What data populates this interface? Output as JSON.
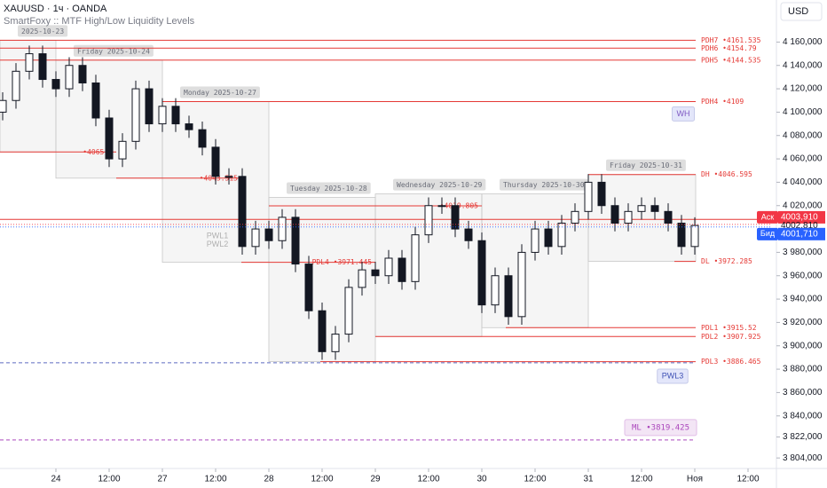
{
  "chart_data": {
    "type": "candlestick",
    "title": "XAUUSD · 1ч · OANDA",
    "subtitle": "SmartFoxy :: MTF High/Low Liquidity Levels",
    "currency": "USD",
    "xlim": [
      -12.6,
      161.4
    ],
    "ylim": [
      3795,
      4196
    ],
    "xticks": [
      {
        "value": 0,
        "label": "24"
      },
      {
        "value": 12,
        "label": "12:00"
      },
      {
        "value": 24,
        "label": "27"
      },
      {
        "value": 36,
        "label": "12:00"
      },
      {
        "value": 48,
        "label": "28"
      },
      {
        "value": 60,
        "label": "12:00"
      },
      {
        "value": 72,
        "label": "29"
      },
      {
        "value": 84,
        "label": "12:00"
      },
      {
        "value": 96,
        "label": "30"
      },
      {
        "value": 108,
        "label": "12:00"
      },
      {
        "value": 120,
        "label": "31"
      },
      {
        "value": 132,
        "label": "12:00"
      },
      {
        "value": 144,
        "label": "Ноя"
      },
      {
        "value": 156,
        "label": "12:00"
      }
    ],
    "yticks": [
      {
        "value": 4160,
        "label": "4 160,000"
      },
      {
        "value": 4140,
        "label": "4 140,000"
      },
      {
        "value": 4120,
        "label": "4 120,000"
      },
      {
        "value": 4100,
        "label": "4 100,000"
      },
      {
        "value": 4080,
        "label": "4 080,000"
      },
      {
        "value": 4060,
        "label": "4 060,000"
      },
      {
        "value": 4040,
        "label": "4 040,000"
      },
      {
        "value": 4020,
        "label": "4 020,000"
      },
      {
        "value": 3980,
        "label": "3 980,000"
      },
      {
        "value": 3960,
        "label": "3 960,000"
      },
      {
        "value": 3940,
        "label": "3 940,000"
      },
      {
        "value": 3920,
        "label": "3 920,000"
      },
      {
        "value": 3900,
        "label": "3 900,000"
      },
      {
        "value": 3880,
        "label": "3 880,000"
      },
      {
        "value": 3860,
        "label": "3 860,000"
      },
      {
        "value": 3840,
        "label": "3 840,000"
      },
      {
        "value": 3822,
        "label": "3 822,000"
      },
      {
        "value": 3804,
        "label": "3 804,000"
      }
    ],
    "candles": {
      "x": [
        -12,
        -9,
        -6,
        -3,
        0,
        3,
        6,
        9,
        12,
        15,
        18,
        21,
        24,
        27,
        30,
        33,
        36,
        39,
        42,
        45,
        48,
        51,
        54,
        57,
        60,
        63,
        66,
        69,
        72,
        75,
        78,
        81,
        84,
        87,
        90,
        93,
        96,
        99,
        102,
        105,
        108,
        111,
        114,
        117,
        120,
        123,
        126,
        129,
        132,
        135,
        138,
        141,
        144
      ],
      "open": [
        4100,
        4110,
        4135,
        4150,
        4128,
        4120,
        4140,
        4125,
        4095,
        4060,
        4075,
        4120,
        4090,
        4105,
        4090,
        4085,
        4070,
        4045,
        4045,
        3985,
        4000,
        3990,
        4010,
        3970,
        3930,
        3895,
        3910,
        3950,
        3965,
        3960,
        3975,
        3955,
        3995,
        4020,
        4020,
        4000,
        3990,
        3935,
        3960,
        3925,
        3980,
        4000,
        3985,
        4005,
        4015,
        4040,
        4020,
        4005,
        4015,
        4020,
        4015,
        4005,
        3985
      ],
      "high": [
        4117,
        4142,
        4157,
        4157,
        4135,
        4147,
        4147,
        4132,
        4102,
        4082,
        4127,
        4127,
        4112,
        4112,
        4097,
        4092,
        4077,
        4052,
        4052,
        4007,
        4007,
        4017,
        4017,
        3977,
        3937,
        3917,
        3957,
        3972,
        3972,
        3982,
        3982,
        4002,
        4027,
        4027,
        4027,
        4007,
        3997,
        3967,
        3967,
        3987,
        4007,
        4007,
        4012,
        4022,
        4047,
        4047,
        4027,
        4022,
        4027,
        4027,
        4022,
        4012,
        4010
      ],
      "low": [
        4093,
        4103,
        4128,
        4121,
        4113,
        4113,
        4118,
        4088,
        4053,
        4053,
        4068,
        4083,
        4083,
        4083,
        4078,
        4063,
        4038,
        4038,
        3978,
        3978,
        3983,
        3983,
        3963,
        3923,
        3888,
        3888,
        3903,
        3943,
        3953,
        3953,
        3948,
        3948,
        3988,
        4013,
        3993,
        3983,
        3928,
        3928,
        3918,
        3918,
        3973,
        3978,
        3978,
        3998,
        4008,
        4013,
        3998,
        3998,
        4008,
        4008,
        3998,
        3978,
        3978
      ],
      "close": [
        4110,
        4135,
        4150,
        4128,
        4120,
        4140,
        4125,
        4095,
        4060,
        4075,
        4120,
        4090,
        4105,
        4090,
        4085,
        4070,
        4045,
        4045,
        3985,
        4000,
        3990,
        4010,
        3970,
        3930,
        3895,
        3910,
        3950,
        3965,
        3960,
        3975,
        3955,
        3995,
        4020,
        4020,
        4000,
        3990,
        3935,
        3960,
        3925,
        3980,
        4000,
        3985,
        4005,
        4015,
        4040,
        4020,
        4005,
        4015,
        4020,
        4015,
        4005,
        3985,
        4003
      ],
      "up_color": "#ffffff",
      "down_color": "#131722"
    },
    "days": [
      {
        "label": "2025-10-23",
        "x_start": -12.6,
        "x_end": 0,
        "high": 4161.535,
        "low": 4065.9
      },
      {
        "label": "Friday 2025-10-24",
        "x_start": 0,
        "x_end": 24,
        "high": 4144.535,
        "low": 4043.515
      },
      {
        "label": "Monday 2025-10-27",
        "x_start": 24,
        "x_end": 48,
        "high": 4109,
        "low": 3971.445
      },
      {
        "label": "Tuesday 2025-10-28",
        "x_start": 48,
        "x_end": 72,
        "high": 4027,
        "low": 3886.465
      },
      {
        "label": "Wednesday 2025-10-29",
        "x_start": 72,
        "x_end": 96,
        "high": 4030,
        "low": 3907.925
      },
      {
        "label": "Thursday 2025-10-30",
        "x_start": 96,
        "x_end": 120,
        "high": 4030,
        "low": 3915.52
      },
      {
        "label": "Friday 2025-10-31",
        "x_start": 120,
        "x_end": 144.2,
        "high": 4046.595,
        "low": 3972.285
      }
    ],
    "levels": [
      {
        "label": "PDH7 •4161.535",
        "value": 4161.535,
        "x_start": -12.6,
        "x_end": 144.2
      },
      {
        "label": "PDH6 •4154.79",
        "value": 4154.79,
        "x_start": -12.6,
        "x_end": 144.2
      },
      {
        "label": "PDH5 •4144.535",
        "value": 4144.535,
        "x_start": -12.6,
        "x_end": 144.2
      },
      {
        "label": "PDH4 •4109",
        "value": 4109,
        "x_start": 24,
        "x_end": 144.2
      },
      {
        "label": "•4065.9",
        "value": 4065.9,
        "x_start": -12.6,
        "x_end": 13.6
      },
      {
        "label": "•4043.515",
        "value": 4043.515,
        "x_start": 13.6,
        "x_end": 41.8
      },
      {
        "label": "•4019.805",
        "value": 4019.805,
        "x_start": 48,
        "x_end": 96
      },
      {
        "label": "PDL4 •3971.445",
        "value": 3971.445,
        "x_start": 41.8,
        "x_end": 72
      },
      {
        "label": "DH •4046.595",
        "value": 4046.595,
        "x_start": 120,
        "x_end": 144.2
      },
      {
        "label": "DL •3972.285",
        "value": 3972.285,
        "x_start": 139.4,
        "x_end": 144.2
      },
      {
        "label": "PDL1 •3915.52",
        "value": 3915.52,
        "x_start": 101.4,
        "x_end": 144.2
      },
      {
        "label": "PDL2 •3907.925",
        "value": 3907.925,
        "x_start": 72,
        "x_end": 144.2
      },
      {
        "label": "PDL3 •3886.465",
        "value": 3886.465,
        "x_start": 59.6,
        "x_end": 144.2
      },
      {
        "value": 4008.2,
        "x_start": -12.6,
        "x_end": 161.4
      }
    ],
    "level_color": "#e53935",
    "dashed_levels": [
      {
        "value": 3885.5,
        "color": "#5c6bc0"
      },
      {
        "label": "ML •3819.425",
        "value": 3819.425,
        "color": "#ab47bc"
      }
    ],
    "tags": [
      {
        "label": "WH",
        "value": 4098.5,
        "x": 141.4,
        "color": "#7e57c2"
      },
      {
        "label": "PWL3",
        "value": 3874,
        "x": 139,
        "color": "#3f51b5"
      },
      {
        "label": "PWL1",
        "value": 3994,
        "x": 36.4,
        "color": "#b0b0b0"
      },
      {
        "label": "PWL2",
        "value": 3986.5,
        "x": 36.4,
        "color": "#b0b0b0"
      }
    ],
    "price_tags": [
      {
        "text": "Аск",
        "value": 4003.91,
        "label": "4003,910",
        "color": "#f23645"
      },
      {
        "value": 4002.81,
        "label": "4002,810",
        "color": "#131722"
      },
      {
        "text": "Бид",
        "value": 4001.71,
        "label": "4001,710",
        "color": "#2962ff"
      }
    ]
  }
}
